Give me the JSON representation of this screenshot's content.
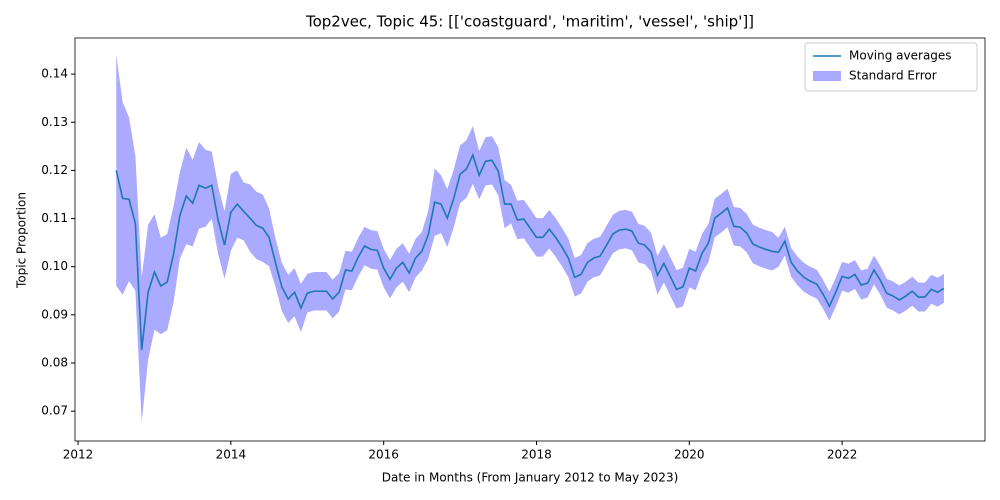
{
  "chart_data": {
    "type": "line",
    "title": "Top2vec, Topic 45: [['coastguard', 'maritim', 'vessel', 'ship']]",
    "xlabel": "Date in Months (From January 2012 to May 2023)",
    "ylabel": "Topic Proportion",
    "x": [
      2012.5,
      2012.583,
      2012.667,
      2012.75,
      2012.833,
      2012.917,
      2013,
      2013.083,
      2013.167,
      2013.25,
      2013.333,
      2013.417,
      2013.5,
      2013.583,
      2013.667,
      2013.75,
      2013.833,
      2013.917,
      2014,
      2014.083,
      2014.167,
      2014.25,
      2014.333,
      2014.417,
      2014.5,
      2014.583,
      2014.667,
      2014.75,
      2014.833,
      2014.917,
      2015,
      2015.083,
      2015.167,
      2015.25,
      2015.333,
      2015.417,
      2015.5,
      2015.583,
      2015.667,
      2015.75,
      2015.833,
      2015.917,
      2016,
      2016.083,
      2016.167,
      2016.25,
      2016.333,
      2016.417,
      2016.5,
      2016.583,
      2016.667,
      2016.75,
      2016.833,
      2016.917,
      2017,
      2017.083,
      2017.167,
      2017.25,
      2017.333,
      2017.417,
      2017.5,
      2017.583,
      2017.667,
      2017.75,
      2017.833,
      2017.917,
      2018,
      2018.083,
      2018.167,
      2018.25,
      2018.333,
      2018.417,
      2018.5,
      2018.583,
      2018.667,
      2018.75,
      2018.833,
      2018.917,
      2019,
      2019.083,
      2019.167,
      2019.25,
      2019.333,
      2019.417,
      2019.5,
      2019.583,
      2019.667,
      2019.75,
      2019.833,
      2019.917,
      2020,
      2020.083,
      2020.167,
      2020.25,
      2020.333,
      2020.417,
      2020.5,
      2020.583,
      2020.667,
      2020.75,
      2020.833,
      2020.917,
      2021,
      2021.083,
      2021.167,
      2021.25,
      2021.333,
      2021.417,
      2021.5,
      2021.583,
      2021.667,
      2021.75,
      2021.833,
      2021.917,
      2022,
      2022.083,
      2022.167,
      2022.25,
      2022.333,
      2022.417,
      2022.5,
      2022.583,
      2022.667,
      2022.75,
      2022.833,
      2022.917,
      2023,
      2023.083,
      2023.167,
      2023.25,
      2023.333
    ],
    "series": [
      {
        "name": "Moving averages",
        "color": "#1f77b4",
        "values": [
          0.12,
          0.1142,
          0.114,
          0.109,
          0.0827,
          0.0947,
          0.0989,
          0.096,
          0.0968,
          0.1026,
          0.1107,
          0.1147,
          0.1132,
          0.1169,
          0.1163,
          0.1169,
          0.1097,
          0.1045,
          0.1113,
          0.113,
          0.1115,
          0.1101,
          0.1086,
          0.108,
          0.1061,
          0.1009,
          0.0958,
          0.0933,
          0.0947,
          0.0914,
          0.0945,
          0.0949,
          0.0949,
          0.0949,
          0.0933,
          0.0947,
          0.0993,
          0.0991,
          0.102,
          0.1043,
          0.1036,
          0.1034,
          0.0997,
          0.0974,
          0.0997,
          0.1009,
          0.0987,
          0.1018,
          0.1032,
          0.1066,
          0.1134,
          0.113,
          0.1101,
          0.1142,
          0.1192,
          0.1203,
          0.1232,
          0.119,
          0.1219,
          0.1221,
          0.1198,
          0.113,
          0.113,
          0.1097,
          0.1099,
          0.108,
          0.1061,
          0.1061,
          0.1078,
          0.1061,
          0.1041,
          0.1018,
          0.0978,
          0.0984,
          0.1009,
          0.1018,
          0.1022,
          0.1045,
          0.1068,
          0.1076,
          0.1078,
          0.1074,
          0.1049,
          0.1045,
          0.103,
          0.0982,
          0.1007,
          0.098,
          0.0953,
          0.0958,
          0.0997,
          0.0991,
          0.1028,
          0.1049,
          0.1101,
          0.1111,
          0.1122,
          0.1084,
          0.1082,
          0.107,
          0.1047,
          0.1041,
          0.1036,
          0.1032,
          0.103,
          0.1053,
          0.1009,
          0.0991,
          0.0978,
          0.097,
          0.0964,
          0.0943,
          0.0918,
          0.0947,
          0.098,
          0.0976,
          0.0984,
          0.0962,
          0.0966,
          0.0993,
          0.0972,
          0.0945,
          0.0939,
          0.0931,
          0.0939,
          0.0949,
          0.0937,
          0.0937,
          0.0953,
          0.0947,
          0.0955
        ]
      }
    ],
    "band": {
      "name": "Standard Error",
      "color": "#aaaaff",
      "errors": [
        0.024,
        0.02,
        0.017,
        0.014,
        0.015,
        0.014,
        0.012,
        0.01,
        0.01,
        0.01,
        0.009,
        0.01,
        0.009,
        0.009,
        0.008,
        0.007,
        0.007,
        0.007,
        0.008,
        0.007,
        0.006,
        0.007,
        0.007,
        0.007,
        0.006,
        0.005,
        0.005,
        0.005,
        0.005,
        0.005,
        0.004,
        0.004,
        0.004,
        0.004,
        0.004,
        0.004,
        0.004,
        0.004,
        0.004,
        0.004,
        0.004,
        0.004,
        0.004,
        0.004,
        0.004,
        0.004,
        0.004,
        0.004,
        0.004,
        0.005,
        0.007,
        0.006,
        0.006,
        0.006,
        0.006,
        0.006,
        0.006,
        0.005,
        0.005,
        0.005,
        0.005,
        0.005,
        0.004,
        0.004,
        0.004,
        0.004,
        0.004,
        0.004,
        0.004,
        0.004,
        0.004,
        0.004,
        0.004,
        0.004,
        0.004,
        0.004,
        0.004,
        0.004,
        0.004,
        0.004,
        0.004,
        0.004,
        0.004,
        0.004,
        0.004,
        0.004,
        0.004,
        0.004,
        0.004,
        0.004,
        0.004,
        0.004,
        0.004,
        0.004,
        0.004,
        0.004,
        0.004,
        0.004,
        0.004,
        0.004,
        0.004,
        0.004,
        0.004,
        0.004,
        0.003,
        0.003,
        0.003,
        0.003,
        0.003,
        0.003,
        0.003,
        0.003,
        0.003,
        0.003,
        0.003,
        0.003,
        0.003,
        0.003,
        0.003,
        0.003,
        0.003,
        0.003,
        0.003,
        0.003,
        0.003,
        0.003,
        0.003,
        0.003,
        0.003,
        0.003,
        0.003
      ]
    },
    "xlim": [
      2011.96,
      2023.87
    ],
    "ylim": [
      0.0638,
      0.1475
    ],
    "xticks": [
      2012,
      2014,
      2016,
      2018,
      2020,
      2022
    ],
    "yticks": [
      0.07,
      0.08,
      0.09,
      {
        "value": 0.1,
        "label": "0.10"
      },
      0.11,
      0.12,
      0.13,
      0.14
    ],
    "legend": "upper right"
  }
}
